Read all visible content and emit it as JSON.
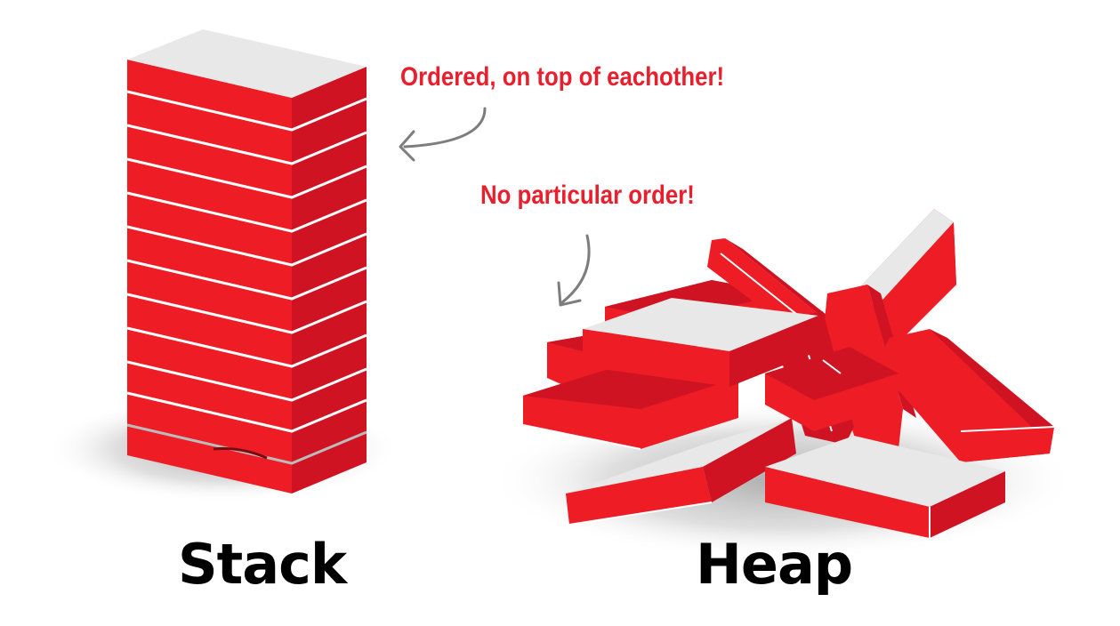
{
  "stack_label": "Stack",
  "heap_label": "Heap",
  "annotations": {
    "ordered": "Ordered, on top of eachother!",
    "no_order": "No particular order!"
  },
  "colors": {
    "block_front": "#ee1c24",
    "block_side": "#cf1323",
    "block_top": "#e8e8e8",
    "divider": "#ffffff",
    "annotation_text": "#e8202e",
    "arrow": "#7d7d7d",
    "label_text": "#000000",
    "shadow": "#bdbdbd"
  },
  "icons": {
    "ordered_arrow": "curved-arrow-left-icon",
    "no_order_arrow": "curved-arrow-down-icon"
  }
}
